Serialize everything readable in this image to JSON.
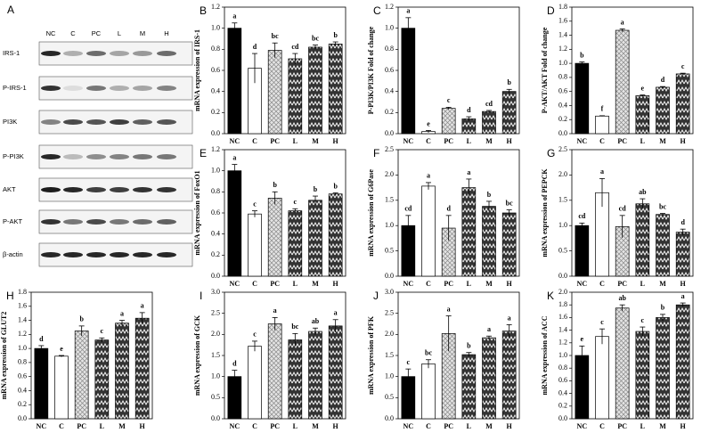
{
  "blot": {
    "label": "A",
    "lanes": [
      "NC",
      "C",
      "PC",
      "L",
      "M",
      "H"
    ],
    "proteins": [
      "IRS-1",
      "P-IRS-1",
      "PI3K",
      "P-PI3K",
      "AKT",
      "P-AKT",
      "β-actin"
    ]
  },
  "chart_data": [
    {
      "type": "bar",
      "label": "B",
      "ylabel": "mRNA expression of IRS-1",
      "categories": [
        "NC",
        "C",
        "PC",
        "L",
        "M",
        "H"
      ],
      "fills": [
        "black",
        "white",
        "crosshatch",
        "zigzag",
        "zigzag",
        "zigzag"
      ],
      "values": [
        1.0,
        0.62,
        0.79,
        0.71,
        0.82,
        0.85
      ],
      "errors": [
        0.05,
        0.14,
        0.07,
        0.05,
        0.02,
        0.02
      ],
      "annotations": [
        "a",
        "d",
        "bc",
        "cd",
        "bc",
        "b"
      ],
      "ylim": [
        0,
        1.2
      ],
      "yticks": [
        {
          "value": 0,
          "label": "0.0"
        },
        0.2,
        0.4,
        0.6,
        0.8,
        {
          "value": 1,
          "label": "1.0"
        },
        1.2
      ]
    },
    {
      "type": "bar",
      "label": "C",
      "ylabel": "P-PI3K/PI3K Fold of change",
      "categories": [
        "NC",
        "C",
        "PC",
        "L",
        "M",
        "H"
      ],
      "fills": [
        "black",
        "white",
        "crosshatch",
        "zigzag",
        "zigzag",
        "zigzag"
      ],
      "values": [
        1.0,
        0.02,
        0.24,
        0.14,
        0.21,
        0.4
      ],
      "errors": [
        0.1,
        0.01,
        0.01,
        0.02,
        0.01,
        0.02
      ],
      "annotations": [
        "a",
        "e",
        "c",
        "d",
        "cd",
        "b"
      ],
      "ylim": [
        0,
        1.2
      ],
      "yticks": [
        {
          "value": 0,
          "label": "0.0"
        },
        0.2,
        0.4,
        0.6,
        0.8,
        {
          "value": 1,
          "label": "1.0"
        },
        1.2
      ]
    },
    {
      "type": "bar",
      "label": "D",
      "ylabel": "P-AKT/AKT Fold of change",
      "categories": [
        "NC",
        "C",
        "PC",
        "L",
        "M",
        "H"
      ],
      "fills": [
        "black",
        "white",
        "crosshatch",
        "zigzag",
        "zigzag",
        "zigzag"
      ],
      "values": [
        1.0,
        0.25,
        1.47,
        0.54,
        0.66,
        0.85
      ],
      "errors": [
        0.02,
        0.005,
        0.02,
        0.01,
        0.01,
        0.01
      ],
      "annotations": [
        "b",
        "f",
        "a",
        "e",
        "d",
        "c"
      ],
      "ylim": [
        0,
        1.8
      ],
      "yticks": [
        {
          "value": 0,
          "label": "0.0"
        },
        0.2,
        0.4,
        0.6,
        0.8,
        {
          "value": 1,
          "label": "1.0"
        },
        1.2,
        1.4,
        1.6,
        1.8
      ]
    },
    {
      "type": "bar",
      "label": "E",
      "ylabel": "mRNA expression of FoxO1",
      "categories": [
        "NC",
        "C",
        "PC",
        "L",
        "M",
        "H"
      ],
      "fills": [
        "black",
        "white",
        "crosshatch",
        "zigzag",
        "zigzag",
        "zigzag"
      ],
      "values": [
        1.0,
        0.59,
        0.74,
        0.62,
        0.72,
        0.78
      ],
      "errors": [
        0.06,
        0.03,
        0.06,
        0.02,
        0.04,
        0.01
      ],
      "annotations": [
        "a",
        "c",
        "b",
        "c",
        "b",
        "b"
      ],
      "ylim": [
        0,
        1.2
      ],
      "yticks": [
        {
          "value": 0,
          "label": "0.0"
        },
        0.2,
        0.4,
        0.6,
        0.8,
        {
          "value": 1,
          "label": "1.0"
        },
        1.2
      ]
    },
    {
      "type": "bar",
      "label": "F",
      "ylabel": "mRNA expression of G6Pase",
      "categories": [
        "NC",
        "C",
        "PC",
        "L",
        "M",
        "H"
      ],
      "fills": [
        "black",
        "white",
        "crosshatch",
        "zigzag",
        "zigzag",
        "zigzag"
      ],
      "values": [
        1.0,
        1.78,
        0.95,
        1.75,
        1.38,
        1.25
      ],
      "errors": [
        0.2,
        0.07,
        0.25,
        0.17,
        0.1,
        0.06
      ],
      "annotations": [
        "cd",
        "a",
        "d",
        "a",
        "b",
        "bc"
      ],
      "ylim": [
        0,
        2.5
      ],
      "yticks": [
        {
          "value": 0,
          "label": "0.0"
        },
        0.5,
        {
          "value": 1,
          "label": "1.0"
        },
        1.5,
        {
          "value": 2,
          "label": "2.0"
        },
        2.5
      ]
    },
    {
      "type": "bar",
      "label": "G",
      "ylabel": "mRNA expression of PEPCK",
      "categories": [
        "NC",
        "C",
        "PC",
        "L",
        "M",
        "H"
      ],
      "fills": [
        "black",
        "white",
        "crosshatch",
        "zigzag",
        "zigzag",
        "zigzag"
      ],
      "values": [
        1.0,
        1.65,
        0.98,
        1.43,
        1.22,
        0.87
      ],
      "errors": [
        0.05,
        0.28,
        0.22,
        0.1,
        0.02,
        0.06
      ],
      "annotations": [
        "cd",
        "a",
        "cd",
        "ab",
        "bc",
        "d"
      ],
      "ylim": [
        0,
        2.5
      ],
      "yticks": [
        {
          "value": 0,
          "label": "0.0"
        },
        0.5,
        {
          "value": 1,
          "label": "1.0"
        },
        1.5,
        {
          "value": 2,
          "label": "2.0"
        },
        2.5
      ]
    },
    {
      "type": "bar",
      "label": "H",
      "ylabel": "mRNA expression of GLUT2",
      "categories": [
        "NC",
        "C",
        "PC",
        "L",
        "M",
        "H"
      ],
      "fills": [
        "black",
        "white",
        "crosshatch",
        "zigzag",
        "zigzag",
        "zigzag"
      ],
      "values": [
        1.0,
        0.89,
        1.25,
        1.12,
        1.36,
        1.43
      ],
      "errors": [
        0.04,
        0.01,
        0.07,
        0.03,
        0.04,
        0.08
      ],
      "annotations": [
        "d",
        "e",
        "b",
        "c",
        "a",
        "a"
      ],
      "ylim": [
        0,
        1.8
      ],
      "yticks": [
        {
          "value": 0,
          "label": "0.0"
        },
        0.2,
        0.4,
        0.6,
        0.8,
        {
          "value": 1,
          "label": "1.0"
        },
        1.2,
        1.4,
        1.6,
        1.8
      ]
    },
    {
      "type": "bar",
      "label": "I",
      "ylabel": "mRNA expression of GCK",
      "categories": [
        "NC",
        "C",
        "PC",
        "L",
        "M",
        "H"
      ],
      "fills": [
        "black",
        "white",
        "crosshatch",
        "zigzag",
        "zigzag",
        "zigzag"
      ],
      "values": [
        1.0,
        1.72,
        2.25,
        1.87,
        2.07,
        2.2
      ],
      "errors": [
        0.15,
        0.12,
        0.15,
        0.15,
        0.08,
        0.15
      ],
      "annotations": [
        "d",
        "c",
        "a",
        "bc",
        "ab",
        "a"
      ],
      "ylim": [
        0,
        3
      ],
      "yticks": [
        {
          "value": 0,
          "label": "0.0"
        },
        0.5,
        {
          "value": 1,
          "label": "1.0"
        },
        1.5,
        {
          "value": 2,
          "label": "2.0"
        },
        2.5,
        {
          "value": 3,
          "label": "3.0"
        }
      ]
    },
    {
      "type": "bar",
      "label": "J",
      "ylabel": "mRNA expression of PFK",
      "categories": [
        "NC",
        "C",
        "PC",
        "L",
        "M",
        "H"
      ],
      "fills": [
        "black",
        "white",
        "crosshatch",
        "zigzag",
        "zigzag",
        "zigzag"
      ],
      "values": [
        1.0,
        1.3,
        2.02,
        1.52,
        1.92,
        2.08
      ],
      "errors": [
        0.18,
        0.1,
        0.42,
        0.05,
        0.04,
        0.15
      ],
      "annotations": [
        "c",
        "bc",
        "a",
        "b",
        "a",
        "a"
      ],
      "ylim": [
        0,
        3
      ],
      "yticks": [
        {
          "value": 0,
          "label": "0.0"
        },
        0.5,
        {
          "value": 1,
          "label": "1.0"
        },
        1.5,
        {
          "value": 2,
          "label": "2.0"
        },
        2.5,
        {
          "value": 3,
          "label": "3.0"
        }
      ]
    },
    {
      "type": "bar",
      "label": "K",
      "ylabel": "mRNA expression of ACC",
      "categories": [
        "NC",
        "C",
        "PC",
        "L",
        "M",
        "H"
      ],
      "fills": [
        "black",
        "white",
        "crosshatch",
        "zigzag",
        "zigzag",
        "zigzag"
      ],
      "values": [
        1.0,
        1.3,
        1.75,
        1.38,
        1.6,
        1.8
      ],
      "errors": [
        0.15,
        0.12,
        0.05,
        0.07,
        0.05,
        0.03
      ],
      "annotations": [
        "e",
        "c",
        "ab",
        "c",
        "b",
        "a"
      ],
      "ylim": [
        0,
        2
      ],
      "yticks": [
        {
          "value": 0,
          "label": "0.0"
        },
        0.2,
        0.4,
        0.6,
        0.8,
        {
          "value": 1,
          "label": "1.0"
        },
        1.2,
        1.4,
        1.6,
        1.8,
        {
          "value": 2,
          "label": "2.0"
        }
      ]
    }
  ]
}
